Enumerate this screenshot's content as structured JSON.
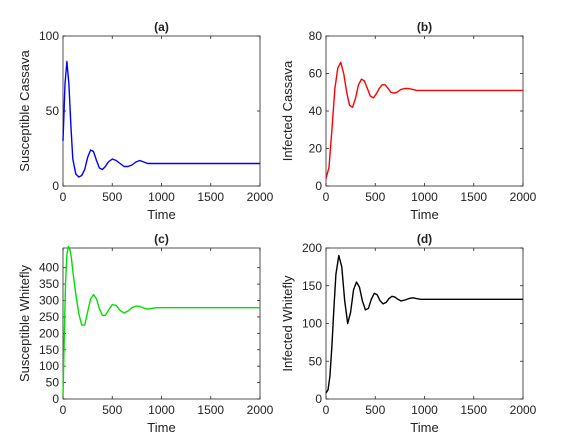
{
  "chart_data": [
    {
      "type": "line",
      "title": "(a)",
      "xlabel": "Time",
      "ylabel": "Susceptible Cassava",
      "xlim": [
        0,
        2000
      ],
      "ylim": [
        0,
        100
      ],
      "xticks": [
        0,
        500,
        1000,
        1500,
        2000
      ],
      "yticks": [
        0,
        50,
        100
      ],
      "grid": false,
      "series": [
        {
          "color": "#0000ff",
          "x": [
            0,
            20,
            40,
            60,
            80,
            100,
            130,
            160,
            190,
            220,
            250,
            280,
            310,
            340,
            370,
            400,
            430,
            460,
            500,
            540,
            580,
            620,
            660,
            700,
            740,
            780,
            820,
            860,
            900,
            950,
            1000,
            1050,
            1100,
            1150,
            1200,
            1300,
            1400,
            1500,
            1600,
            1700,
            1800,
            1900,
            2000
          ],
          "y": [
            30,
            68,
            83,
            68,
            40,
            18,
            8,
            6,
            7,
            11,
            19,
            24,
            23,
            17,
            12,
            11,
            13,
            16,
            18,
            17,
            15,
            13,
            13,
            14,
            16,
            17,
            16,
            15,
            15,
            15,
            15,
            15,
            15,
            15,
            15,
            15,
            15,
            15,
            15,
            15,
            15,
            15,
            15
          ]
        }
      ]
    },
    {
      "type": "line",
      "title": "(b)",
      "xlabel": "Time",
      "ylabel": "Infected Cassava",
      "xlim": [
        0,
        2000
      ],
      "ylim": [
        0,
        80
      ],
      "xticks": [
        0,
        500,
        1000,
        1500,
        2000
      ],
      "yticks": [
        0,
        20,
        40,
        60,
        80
      ],
      "grid": false,
      "series": [
        {
          "color": "#ff0000",
          "x": [
            0,
            30,
            60,
            90,
            120,
            150,
            180,
            210,
            240,
            270,
            300,
            330,
            360,
            390,
            420,
            450,
            480,
            510,
            540,
            570,
            600,
            630,
            660,
            690,
            720,
            760,
            800,
            840,
            880,
            920,
            960,
            1000,
            1100,
            1200,
            1300,
            1400,
            1500,
            1600,
            1700,
            1800,
            1900,
            2000
          ],
          "y": [
            4,
            10,
            30,
            52,
            63,
            66,
            60,
            50,
            43,
            42,
            47,
            54,
            57,
            56,
            52,
            48,
            47,
            49,
            52,
            54,
            54,
            52,
            50,
            49.5,
            50,
            51.5,
            52,
            52,
            51.5,
            51,
            51,
            51,
            51,
            51,
            51,
            51,
            51,
            51,
            51,
            51,
            51,
            51
          ]
        }
      ]
    },
    {
      "type": "line",
      "title": "(c)",
      "xlabel": "Time",
      "ylabel": "Susceptible Whitefly",
      "xlim": [
        0,
        2000
      ],
      "ylim": [
        0,
        460
      ],
      "xticks": [
        0,
        500,
        1000,
        1500,
        2000
      ],
      "yticks": [
        0,
        50,
        100,
        150,
        200,
        250,
        300,
        350,
        400
      ],
      "grid": false,
      "series": [
        {
          "color": "#00e000",
          "x": [
            0,
            10,
            25,
            40,
            55,
            70,
            85,
            100,
            130,
            160,
            190,
            220,
            250,
            280,
            310,
            340,
            370,
            400,
            430,
            460,
            500,
            540,
            580,
            620,
            660,
            700,
            740,
            780,
            820,
            860,
            900,
            950,
            1000,
            1100,
            1200,
            1300,
            1400,
            1500,
            1600,
            1700,
            1800,
            1900,
            2000
          ],
          "y": [
            10,
            150,
            350,
            440,
            465,
            455,
            430,
            390,
            320,
            260,
            225,
            225,
            265,
            305,
            318,
            305,
            275,
            255,
            255,
            270,
            288,
            285,
            270,
            262,
            268,
            278,
            283,
            282,
            277,
            274,
            276,
            278,
            278,
            278,
            278,
            278,
            278,
            278,
            278,
            278,
            278,
            278,
            278
          ]
        }
      ]
    },
    {
      "type": "line",
      "title": "(d)",
      "xlabel": "Time",
      "ylabel": "Infected Whitefly",
      "xlim": [
        0,
        2000
      ],
      "ylim": [
        0,
        200
      ],
      "xticks": [
        0,
        500,
        1000,
        1500,
        2000
      ],
      "yticks": [
        0,
        50,
        100,
        150,
        200
      ],
      "grid": false,
      "series": [
        {
          "color": "#000000",
          "x": [
            0,
            20,
            40,
            60,
            80,
            100,
            130,
            160,
            190,
            220,
            250,
            280,
            310,
            340,
            370,
            400,
            430,
            460,
            490,
            520,
            550,
            580,
            610,
            640,
            670,
            700,
            730,
            760,
            800,
            840,
            880,
            920,
            960,
            1000,
            1100,
            1200,
            1300,
            1400,
            1500,
            1600,
            1700,
            1800,
            1900,
            2000
          ],
          "y": [
            8,
            12,
            30,
            70,
            120,
            165,
            190,
            175,
            130,
            100,
            115,
            145,
            155,
            148,
            130,
            118,
            120,
            132,
            140,
            138,
            130,
            126,
            128,
            133,
            136,
            135,
            132,
            130,
            131,
            133,
            134,
            133,
            132,
            132,
            132,
            132,
            132,
            132,
            132,
            132,
            132,
            132,
            132,
            132
          ]
        }
      ]
    }
  ]
}
